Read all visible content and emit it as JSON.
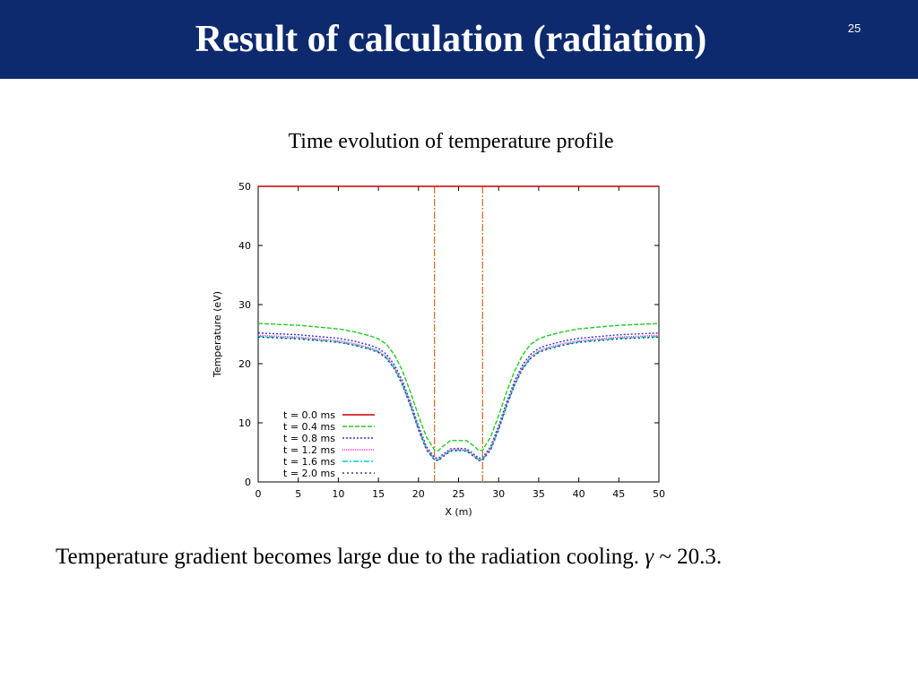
{
  "slide": {
    "title": "Result of calculation (radiation)",
    "page_number": "25",
    "caption": "Time evolution of temperature profile",
    "footer_text": "Temperature gradient becomes large due to the radiation cooling. ",
    "footer_symbol": "γ",
    "footer_suffix": " ~ 20.3."
  },
  "colors": {
    "header_bg": "#0d2a6e",
    "header_text": "#ffffff"
  },
  "chart_data": {
    "type": "line",
    "title": "Time evolution of temperature profile",
    "xlabel": "X (m)",
    "ylabel": "Temperature (eV)",
    "xlim": [
      0,
      50
    ],
    "ylim": [
      0,
      50
    ],
    "xticks": [
      0,
      5,
      10,
      15,
      20,
      25,
      30,
      35,
      40,
      45,
      50
    ],
    "yticks": [
      0,
      10,
      20,
      30,
      40,
      50
    ],
    "legend_position": "bottom-left",
    "vlines": [
      {
        "x": 22,
        "color": "#d2691e"
      },
      {
        "x": 28,
        "color": "#d2691e"
      }
    ],
    "x": [
      0,
      5,
      10,
      12,
      14,
      15,
      16,
      17,
      18,
      19,
      20,
      21,
      22,
      22.5,
      23,
      24,
      25,
      26,
      27,
      27.5,
      28,
      29,
      30,
      31,
      32,
      33,
      34,
      35,
      36,
      38,
      40,
      45,
      50
    ],
    "series": [
      {
        "name": "t = 0.0 ms",
        "color": "#cc0000",
        "dash": "",
        "values": [
          50,
          50,
          50,
          50,
          50,
          50,
          50,
          50,
          50,
          50,
          50,
          50,
          50,
          50,
          50,
          50,
          50,
          50,
          50,
          50,
          50,
          50,
          50,
          50,
          50,
          50,
          50,
          50,
          50,
          50,
          50,
          50,
          50
        ]
      },
      {
        "name": "t = 0.4 ms",
        "color": "#22cc22",
        "dash": "5,2",
        "values": [
          26.8,
          26.5,
          25.9,
          25.4,
          24.7,
          24.2,
          23.3,
          21.5,
          18.8,
          15.2,
          11.2,
          7.6,
          5.4,
          5.3,
          6.0,
          7.0,
          7.0,
          7.0,
          6.0,
          5.3,
          5.4,
          7.6,
          11.2,
          15.2,
          18.8,
          21.5,
          23.3,
          24.2,
          24.7,
          25.4,
          25.9,
          26.5,
          26.8
        ]
      },
      {
        "name": "t = 0.8 ms",
        "color": "#3333cc",
        "dash": "2,2",
        "values": [
          25.2,
          24.9,
          24.3,
          23.8,
          23.1,
          22.6,
          21.6,
          19.8,
          17.1,
          13.5,
          9.5,
          6.0,
          4.1,
          4.0,
          4.6,
          5.6,
          5.7,
          5.6,
          4.6,
          4.0,
          4.1,
          6.0,
          9.5,
          13.5,
          17.1,
          19.8,
          21.6,
          22.6,
          23.1,
          23.8,
          24.3,
          24.9,
          25.2
        ]
      },
      {
        "name": "t = 1.2 ms",
        "color": "#ff33cc",
        "dash": "1,1",
        "values": [
          24.8,
          24.5,
          23.9,
          23.4,
          22.7,
          22.2,
          21.2,
          19.4,
          16.7,
          13.1,
          9.1,
          5.7,
          3.9,
          3.8,
          4.4,
          5.4,
          5.5,
          5.4,
          4.4,
          3.8,
          3.9,
          5.7,
          9.1,
          13.1,
          16.7,
          19.4,
          21.2,
          22.2,
          22.7,
          23.4,
          23.9,
          24.5,
          24.8
        ]
      },
      {
        "name": "t = 1.6 ms",
        "color": "#00cccc",
        "dash": "6,2,2,2",
        "values": [
          24.6,
          24.3,
          23.7,
          23.2,
          22.5,
          22.0,
          21.0,
          19.2,
          16.5,
          12.9,
          8.9,
          5.5,
          3.8,
          3.7,
          4.3,
          5.3,
          5.4,
          5.3,
          4.3,
          3.7,
          3.8,
          5.5,
          8.9,
          12.9,
          16.5,
          19.2,
          21.0,
          22.0,
          22.5,
          23.2,
          23.7,
          24.3,
          24.6
        ]
      },
      {
        "name": "t = 2.0 ms",
        "color": "#334466",
        "dash": "2,3",
        "values": [
          24.5,
          24.2,
          23.6,
          23.1,
          22.4,
          21.9,
          20.9,
          19.1,
          16.4,
          12.8,
          8.8,
          5.4,
          3.7,
          3.6,
          4.2,
          5.2,
          5.3,
          5.2,
          4.2,
          3.6,
          3.7,
          5.4,
          8.8,
          12.8,
          16.4,
          19.1,
          20.9,
          21.9,
          22.4,
          23.1,
          23.6,
          24.2,
          24.5
        ]
      }
    ]
  }
}
